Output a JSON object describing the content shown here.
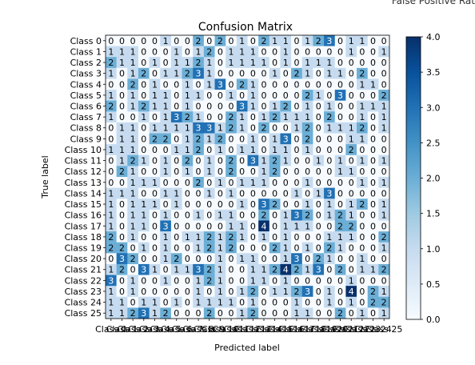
{
  "corner_text": "False Positive Rat",
  "chart_data": {
    "type": "heatmap",
    "title": "Confusion Matrix",
    "xlabel": "Predicted label",
    "ylabel": "True label",
    "categories": [
      "Class 0",
      "Class 1",
      "Class 2",
      "Class 3",
      "Class 4",
      "Class 5",
      "Class 6",
      "Class 7",
      "Class 8",
      "Class 9",
      "Class 10",
      "Class 11",
      "Class 12",
      "Class 13",
      "Class 14",
      "Class 15",
      "Class 16",
      "Class 17",
      "Class 18",
      "Class 19",
      "Class 20",
      "Class 21",
      "Class 22",
      "Class 23",
      "Class 24",
      "Class 25"
    ],
    "matrix": [
      [
        0,
        0,
        0,
        0,
        0,
        1,
        0,
        0,
        2,
        0,
        2,
        0,
        1,
        0,
        2,
        1,
        1,
        0,
        1,
        2,
        3,
        0,
        1,
        1,
        0,
        0
      ],
      [
        1,
        1,
        1,
        0,
        0,
        0,
        1,
        0,
        1,
        2,
        0,
        1,
        1,
        1,
        0,
        0,
        1,
        0,
        0,
        0,
        0,
        0,
        1,
        0,
        0,
        1
      ],
      [
        2,
        1,
        1,
        0,
        1,
        0,
        1,
        1,
        2,
        1,
        0,
        1,
        1,
        1,
        1,
        0,
        1,
        0,
        1,
        1,
        1,
        0,
        0,
        0,
        0,
        0
      ],
      [
        1,
        0,
        1,
        2,
        0,
        1,
        1,
        2,
        3,
        1,
        0,
        0,
        0,
        0,
        0,
        1,
        0,
        2,
        1,
        0,
        1,
        1,
        0,
        2,
        0,
        0
      ],
      [
        0,
        0,
        2,
        0,
        1,
        0,
        0,
        1,
        0,
        1,
        3,
        0,
        2,
        1,
        0,
        0,
        0,
        0,
        0,
        0,
        0,
        0,
        0,
        1,
        1,
        0
      ],
      [
        1,
        0,
        1,
        0,
        1,
        1,
        0,
        1,
        1,
        0,
        0,
        1,
        0,
        1,
        0,
        0,
        0,
        0,
        2,
        1,
        0,
        3,
        0,
        0,
        0,
        2
      ],
      [
        2,
        0,
        1,
        2,
        1,
        1,
        0,
        1,
        0,
        0,
        0,
        0,
        3,
        1,
        0,
        1,
        2,
        0,
        1,
        0,
        1,
        0,
        0,
        1,
        1,
        1
      ],
      [
        1,
        0,
        0,
        1,
        0,
        1,
        3,
        2,
        1,
        0,
        0,
        2,
        1,
        0,
        1,
        2,
        1,
        1,
        1,
        0,
        2,
        0,
        0,
        1,
        0,
        1
      ],
      [
        0,
        1,
        1,
        0,
        1,
        1,
        1,
        1,
        3,
        3,
        1,
        2,
        1,
        0,
        2,
        0,
        0,
        1,
        2,
        0,
        1,
        1,
        1,
        2,
        0,
        1
      ],
      [
        0,
        1,
        1,
        0,
        2,
        2,
        0,
        1,
        2,
        1,
        2,
        0,
        0,
        1,
        0,
        1,
        3,
        0,
        2,
        0,
        0,
        0,
        1,
        1,
        0,
        0
      ],
      [
        1,
        1,
        1,
        0,
        0,
        0,
        1,
        1,
        2,
        0,
        1,
        0,
        1,
        1,
        0,
        1,
        1,
        0,
        1,
        0,
        0,
        0,
        2,
        0,
        0,
        0
      ],
      [
        0,
        1,
        2,
        1,
        0,
        1,
        0,
        2,
        0,
        1,
        0,
        2,
        0,
        3,
        1,
        2,
        1,
        0,
        0,
        1,
        0,
        1,
        0,
        1,
        0,
        1
      ],
      [
        0,
        2,
        1,
        0,
        0,
        1,
        0,
        1,
        0,
        1,
        0,
        2,
        0,
        0,
        1,
        2,
        0,
        0,
        0,
        0,
        0,
        1,
        1,
        0,
        0,
        0
      ],
      [
        0,
        0,
        1,
        1,
        1,
        0,
        0,
        0,
        2,
        0,
        1,
        0,
        1,
        1,
        1,
        0,
        0,
        0,
        1,
        0,
        0,
        0,
        0,
        1,
        0,
        1
      ],
      [
        1,
        1,
        1,
        0,
        0,
        1,
        1,
        0,
        0,
        1,
        0,
        1,
        0,
        0,
        0,
        0,
        0,
        1,
        0,
        1,
        3,
        0,
        0,
        0,
        0,
        0
      ],
      [
        1,
        0,
        1,
        1,
        1,
        0,
        1,
        0,
        0,
        0,
        0,
        0,
        1,
        0,
        3,
        2,
        0,
        0,
        1,
        0,
        1,
        0,
        1,
        2,
        0,
        1
      ],
      [
        1,
        0,
        1,
        1,
        0,
        1,
        0,
        0,
        1,
        0,
        1,
        1,
        0,
        0,
        2,
        0,
        1,
        3,
        2,
        0,
        1,
        2,
        1,
        0,
        0,
        1
      ],
      [
        1,
        0,
        1,
        1,
        0,
        3,
        0,
        0,
        0,
        0,
        0,
        1,
        1,
        0,
        4,
        0,
        1,
        1,
        1,
        0,
        0,
        2,
        2,
        0,
        0,
        0
      ],
      [
        2,
        0,
        1,
        0,
        0,
        1,
        0,
        1,
        1,
        2,
        1,
        2,
        1,
        0,
        1,
        0,
        1,
        0,
        0,
        0,
        1,
        1,
        1,
        0,
        0,
        2
      ],
      [
        2,
        2,
        0,
        1,
        0,
        1,
        0,
        0,
        1,
        2,
        1,
        2,
        0,
        0,
        0,
        2,
        1,
        0,
        1,
        0,
        2,
        1,
        0,
        0,
        0,
        1
      ],
      [
        0,
        3,
        2,
        0,
        0,
        1,
        2,
        0,
        0,
        0,
        1,
        0,
        1,
        1,
        0,
        0,
        1,
        3,
        0,
        2,
        1,
        0,
        0,
        1,
        0,
        0
      ],
      [
        1,
        2,
        0,
        3,
        1,
        0,
        1,
        1,
        3,
        2,
        1,
        0,
        0,
        1,
        1,
        2,
        4,
        2,
        1,
        3,
        0,
        2,
        0,
        1,
        1,
        2
      ],
      [
        3,
        0,
        1,
        0,
        0,
        1,
        0,
        0,
        1,
        2,
        1,
        0,
        0,
        1,
        1,
        0,
        1,
        0,
        0,
        0,
        0,
        0,
        1,
        0,
        0,
        0
      ],
      [
        1,
        0,
        1,
        0,
        0,
        0,
        0,
        0,
        1,
        0,
        1,
        0,
        1,
        2,
        0,
        1,
        1,
        2,
        3,
        0,
        1,
        0,
        4,
        0,
        2,
        1
      ],
      [
        1,
        1,
        0,
        1,
        1,
        0,
        1,
        0,
        1,
        1,
        1,
        1,
        0,
        1,
        0,
        0,
        0,
        1,
        0,
        0,
        1,
        0,
        1,
        0,
        2,
        2
      ],
      [
        1,
        1,
        2,
        3,
        1,
        2,
        0,
        0,
        0,
        2,
        0,
        0,
        1,
        2,
        0,
        0,
        0,
        1,
        1,
        0,
        0,
        2,
        0,
        1,
        0,
        1
      ]
    ],
    "x_tick_labels": [
      "Class 0",
      "Class 1",
      "Class 2",
      "Class 3",
      "Class 4",
      "Class 5",
      "Class 6",
      "Class 7",
      "Class 8",
      "Class 9",
      "Class 10",
      "Class 11",
      "Class 12",
      "Class 13",
      "Class 14",
      "Class 15",
      "Class 16",
      "Class 17",
      "Class 18",
      "Class 19",
      "Class 20",
      "Class 21",
      "Class 22",
      "Class 23",
      "Class 24",
      "Class 25"
    ],
    "colorbar": {
      "min": 0,
      "max": 4,
      "ticks": [
        "0.0",
        "0.5",
        "1.0",
        "1.5",
        "2.0",
        "2.5",
        "3.0",
        "3.5",
        "4.0"
      ],
      "colormap": "Blues",
      "colors": [
        "#f7fbff",
        "#deebf7",
        "#c6dbef",
        "#9ecae1",
        "#6baed6",
        "#4292c6",
        "#2171b5",
        "#08519c",
        "#08306b"
      ]
    }
  }
}
